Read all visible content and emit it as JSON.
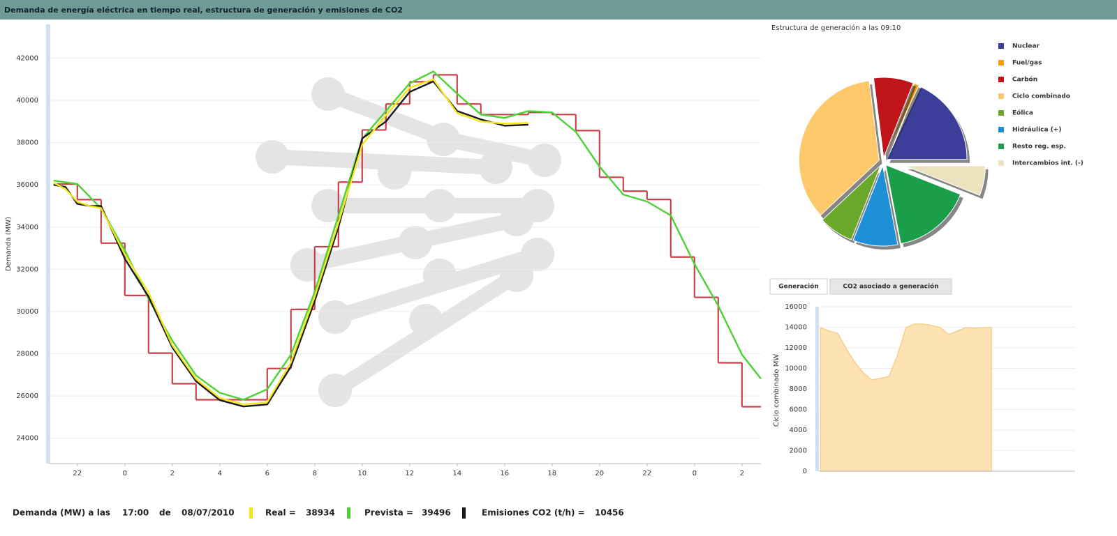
{
  "header": {
    "title": "Demanda de energía eléctrica en tiempo real, estructura de generación y emisiones de CO2"
  },
  "chart_data": [
    {
      "type": "line",
      "y_label": "Demanda (MW)",
      "xlim": [
        20.8,
        50.8
      ],
      "ylim": [
        22800,
        43600
      ],
      "xticks": [
        {
          "value": 22,
          "label": "22"
        },
        {
          "value": 24,
          "label": "0"
        },
        {
          "value": 26,
          "label": "2"
        },
        {
          "value": 28,
          "label": "4"
        },
        {
          "value": 30,
          "label": "6"
        },
        {
          "value": 32,
          "label": "8"
        },
        {
          "value": 34,
          "label": "10"
        },
        {
          "value": 36,
          "label": "12"
        },
        {
          "value": 38,
          "label": "14"
        },
        {
          "value": 40,
          "label": "16"
        },
        {
          "value": 42,
          "label": "18"
        },
        {
          "value": 44,
          "label": "20"
        },
        {
          "value": 46,
          "label": "22"
        },
        {
          "value": 48,
          "label": "0"
        },
        {
          "value": 50,
          "label": "2"
        }
      ],
      "yticks": [
        24000,
        26000,
        28000,
        30000,
        32000,
        34000,
        36000,
        38000,
        40000,
        42000
      ],
      "grid": true,
      "series": [
        {
          "color": "#c9424a",
          "step": true,
          "x": [
            21,
            22,
            23,
            24,
            25,
            26,
            27,
            28,
            29,
            30,
            31,
            32,
            33,
            34,
            35,
            36,
            37,
            38,
            39,
            40,
            41,
            42,
            43,
            44,
            45,
            46,
            47,
            48,
            49,
            50
          ],
          "values": [
            36040,
            35300,
            33240,
            30760,
            28030,
            26580,
            25820,
            25820,
            25820,
            27300,
            30100,
            33070,
            36130,
            38600,
            39830,
            40880,
            41210,
            39830,
            39330,
            39330,
            39430,
            39330,
            38570,
            36360,
            35700,
            35310,
            32580,
            30670,
            27570,
            25490
          ]
        },
        {
          "color": "#4cd137",
          "x": [
            21,
            22,
            23,
            24,
            25,
            26,
            27,
            28,
            29,
            30,
            31,
            32,
            33,
            34,
            35,
            36,
            37,
            38,
            39,
            40,
            41,
            42,
            43,
            44,
            45,
            46,
            47,
            48,
            49,
            50,
            50.8
          ],
          "values": [
            36200,
            36040,
            34880,
            32900,
            30600,
            28620,
            26970,
            26150,
            25820,
            26320,
            27960,
            30930,
            34550,
            38180,
            39500,
            40810,
            41370,
            40320,
            39330,
            39170,
            39496,
            39430,
            38510,
            36860,
            35540,
            35210,
            34550,
            32250,
            30270,
            27960,
            26810
          ]
        },
        {
          "color": "#1a1a1a",
          "x": [
            21,
            21.5,
            22,
            22.5,
            23,
            24,
            25,
            26,
            27,
            28,
            29,
            30,
            31,
            32,
            33,
            34,
            35,
            36,
            37,
            38,
            39,
            40,
            41
          ],
          "values": [
            36000,
            35900,
            35100,
            35000,
            35000,
            32500,
            30700,
            28300,
            26700,
            25800,
            25500,
            25600,
            27400,
            30500,
            34000,
            38200,
            39000,
            40400,
            40900,
            39500,
            39100,
            38800,
            38850
          ]
        },
        {
          "color": "#f5e61a",
          "x": [
            21,
            21.5,
            22,
            22.5,
            23,
            24,
            25,
            26,
            27,
            28,
            29,
            30,
            31,
            32,
            33,
            34,
            35,
            36,
            37,
            38,
            39,
            40,
            41
          ],
          "values": [
            36100,
            35800,
            35200,
            35000,
            34900,
            32700,
            30900,
            28400,
            26800,
            25900,
            25600,
            25700,
            27600,
            30700,
            34200,
            37900,
            39300,
            40600,
            41000,
            39400,
            39000,
            38900,
            38934
          ]
        }
      ]
    },
    {
      "type": "pie",
      "title": "Estructura de generación a las 09:10",
      "categories": [
        "Nuclear",
        "Fuel/gas",
        "Carbón",
        "Ciclo combinado",
        "Eólica",
        "Hidráulica (+)",
        "Resto reg. esp.",
        "Intercambios int. (-)"
      ],
      "values": [
        18,
        1,
        8,
        35,
        7,
        9,
        16,
        6
      ],
      "colors": [
        "#3d3d9a",
        "#f39c12",
        "#c0141b",
        "#fdc96b",
        "#6aa82a",
        "#1e90d8",
        "#1a9e4a",
        "#ece2bd"
      ]
    },
    {
      "type": "area",
      "tabs": [
        "Generación",
        "CO2 asociado a generación"
      ],
      "y_label": "Ciclo combinado MW",
      "color": "#fde3b4",
      "line_color": "#f8cf8a",
      "xlim": [
        20.8,
        50.8
      ],
      "ylim": [
        0,
        16000
      ],
      "yticks": [
        0,
        2000,
        4000,
        6000,
        8000,
        10000,
        12000,
        14000,
        16000
      ],
      "grid": true,
      "x": [
        21,
        22,
        23,
        24,
        25,
        26,
        27,
        28,
        29,
        30,
        31,
        32,
        33,
        34,
        35,
        36,
        37,
        38,
        39,
        40,
        41
      ],
      "values": [
        13970,
        13630,
        13420,
        11930,
        10580,
        9560,
        8880,
        9020,
        9220,
        11250,
        13970,
        14310,
        14310,
        14170,
        13970,
        13290,
        13630,
        13970,
        13900,
        13970,
        13970
      ]
    }
  ],
  "footer": {
    "label": "Demanda (MW) a las",
    "time": "17:00",
    "of": "de",
    "date": "08/07/2010",
    "items": [
      {
        "label": "Real =",
        "value": 38934
      },
      {
        "label": "Prevista =",
        "value": 39496
      },
      {
        "label": "Emisiones CO2 (t/h) =",
        "value": 10456
      }
    ]
  }
}
